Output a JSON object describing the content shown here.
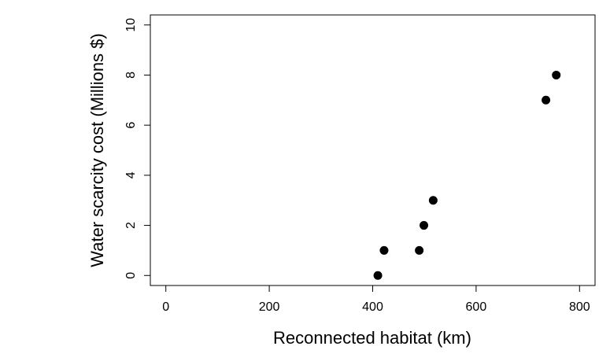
{
  "chart_data": {
    "type": "scatter",
    "title": "",
    "xlabel": "Reconnected habitat (km)",
    "ylabel": "Water scarcity cost (Millions $)",
    "xlim": [
      -30,
      830
    ],
    "ylim": [
      -0.4,
      10.4
    ],
    "xticks": [
      0,
      200,
      400,
      600,
      800
    ],
    "yticks": [
      0,
      2,
      4,
      6,
      8,
      10
    ],
    "xtick_labels": [
      "0",
      "200",
      "400",
      "600",
      "800"
    ],
    "ytick_labels": [
      "0",
      "2",
      "4",
      "6",
      "8",
      "10"
    ],
    "grid": false,
    "legend": "none",
    "point_color": "#000000",
    "series": [
      {
        "x": [
          410,
          422,
          490,
          499,
          517,
          735,
          755
        ],
        "y": [
          0,
          1,
          1,
          2,
          3,
          7,
          8
        ]
      }
    ]
  }
}
